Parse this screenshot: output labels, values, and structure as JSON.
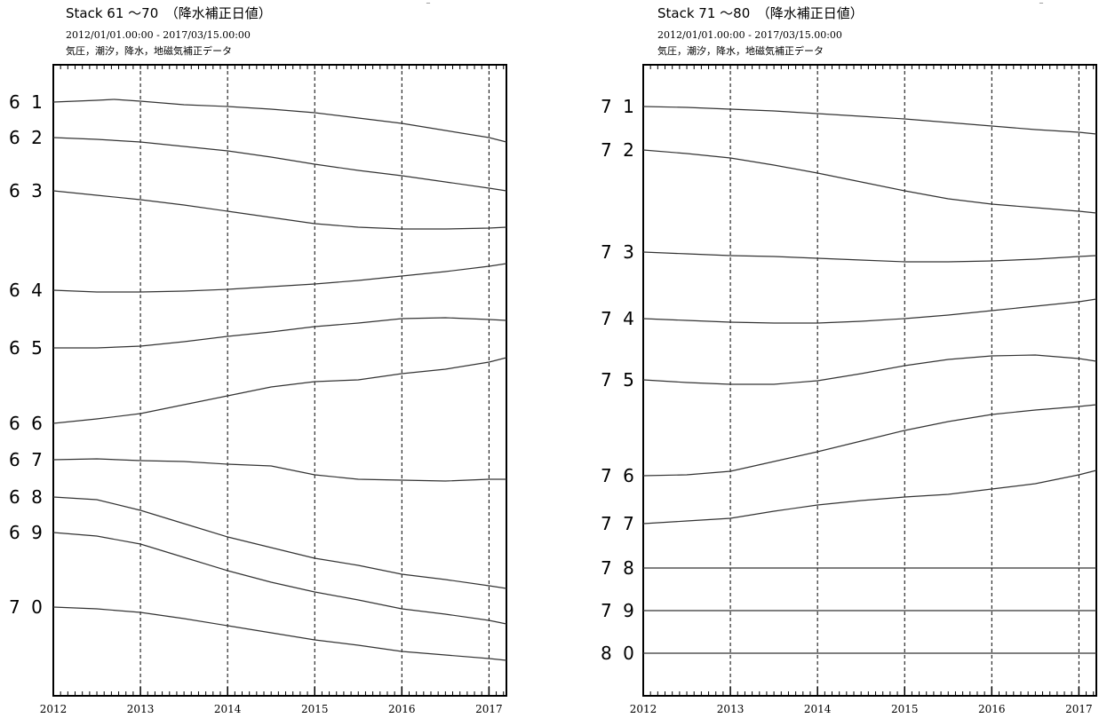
{
  "chart_data": [
    {
      "type": "line",
      "title": "Stack 61 ～70　（降水補正日値）",
      "date_range": "2012/01/01.00:00 - 2017/03/15.00:00",
      "corrections": "気圧，潮汐，降水，地磁気補正データ",
      "x_ticks": [
        "2012",
        "2013",
        "2014",
        "2015",
        "2016",
        "2017"
      ],
      "xlim": [
        2012.0,
        2017.2
      ],
      "series": [
        {
          "name": "6 1",
          "x": [
            2012.0,
            2012.5,
            2012.7,
            2013.0,
            2013.5,
            2014.0,
            2014.5,
            2015.0,
            2015.5,
            2016.0,
            2016.5,
            2017.0,
            2017.2
          ],
          "y": [
            115,
            113,
            112,
            114,
            118,
            120,
            123,
            127,
            133,
            139,
            147,
            155,
            160
          ]
        },
        {
          "name": "6 2",
          "x": [
            2012.0,
            2012.5,
            2013.0,
            2013.5,
            2014.0,
            2014.5,
            2015.0,
            2015.5,
            2016.0,
            2016.5,
            2017.0,
            2017.2
          ],
          "y": [
            155,
            157,
            160,
            165,
            170,
            177,
            185,
            192,
            198,
            205,
            212,
            215
          ]
        },
        {
          "name": "6 3",
          "x": [
            2012.0,
            2012.5,
            2013.0,
            2013.5,
            2014.0,
            2014.5,
            2015.0,
            2015.5,
            2016.0,
            2016.5,
            2017.0,
            2017.2
          ],
          "y": [
            215,
            220,
            225,
            231,
            238,
            245,
            252,
            256,
            258,
            258,
            257,
            256
          ]
        },
        {
          "name": "6 4",
          "x": [
            2012.0,
            2012.5,
            2013.0,
            2013.5,
            2014.0,
            2014.5,
            2015.0,
            2015.5,
            2016.0,
            2016.5,
            2017.0,
            2017.2
          ],
          "y": [
            327,
            329,
            329,
            328,
            326,
            323,
            320,
            316,
            311,
            306,
            300,
            297
          ]
        },
        {
          "name": "6 5",
          "x": [
            2012.0,
            2012.5,
            2013.0,
            2013.5,
            2014.0,
            2014.5,
            2015.0,
            2015.5,
            2016.0,
            2016.5,
            2017.0,
            2017.2
          ],
          "y": [
            392,
            392,
            390,
            385,
            379,
            374,
            368,
            364,
            359,
            358,
            360,
            361
          ]
        },
        {
          "name": "6 6",
          "x": [
            2012.0,
            2012.5,
            2013.0,
            2013.5,
            2014.0,
            2014.5,
            2015.0,
            2015.5,
            2016.0,
            2016.5,
            2017.0,
            2017.2
          ],
          "y": [
            477,
            472,
            466,
            456,
            446,
            436,
            430,
            428,
            421,
            416,
            408,
            403
          ]
        },
        {
          "name": "6 7",
          "x": [
            2012.0,
            2012.5,
            2013.0,
            2013.5,
            2014.0,
            2014.5,
            2015.0,
            2015.5,
            2016.0,
            2016.5,
            2017.0,
            2017.2
          ],
          "y": [
            518,
            517,
            519,
            520,
            523,
            525,
            535,
            540,
            541,
            542,
            540,
            540
          ]
        },
        {
          "name": "6 8",
          "x": [
            2012.0,
            2012.5,
            2013.0,
            2013.5,
            2014.0,
            2014.5,
            2015.0,
            2015.5,
            2016.0,
            2016.5,
            2017.0,
            2017.2
          ],
          "y": [
            560,
            563,
            575,
            590,
            605,
            617,
            629,
            637,
            647,
            653,
            660,
            663
          ]
        },
        {
          "name": "6 9",
          "x": [
            2012.0,
            2012.5,
            2013.0,
            2013.5,
            2014.0,
            2014.5,
            2015.0,
            2015.5,
            2016.0,
            2016.5,
            2017.0,
            2017.2
          ],
          "y": [
            600,
            604,
            613,
            628,
            643,
            656,
            667,
            676,
            686,
            692,
            699,
            703
          ]
        },
        {
          "name": "7 0",
          "x": [
            2012.0,
            2012.5,
            2013.0,
            2013.5,
            2014.0,
            2014.5,
            2015.0,
            2015.5,
            2016.0,
            2016.5,
            2017.0,
            2017.2
          ],
          "y": [
            684,
            686,
            690,
            697,
            705,
            713,
            721,
            727,
            734,
            738,
            742,
            744
          ]
        }
      ]
    },
    {
      "type": "line",
      "title": "Stack 71 ～80　（降水補正日値）",
      "date_range": "2012/01/01.00:00 - 2017/03/15.00:00",
      "corrections": "気圧，潮汐，降水，地磁気補正データ",
      "x_ticks": [
        "2012",
        "2013",
        "2014",
        "2015",
        "2016",
        "2017"
      ],
      "xlim": [
        2012.0,
        2017.2
      ],
      "series": [
        {
          "name": "7 1",
          "x": [
            2012.0,
            2012.5,
            2013.0,
            2013.5,
            2014.0,
            2014.5,
            2015.0,
            2015.5,
            2016.0,
            2016.5,
            2017.0,
            2017.2
          ],
          "y": [
            120,
            121,
            123,
            125,
            128,
            131,
            134,
            138,
            142,
            146,
            149,
            151
          ]
        },
        {
          "name": "7 2",
          "x": [
            2012.0,
            2012.5,
            2013.0,
            2013.5,
            2014.0,
            2014.5,
            2015.0,
            2015.5,
            2016.0,
            2016.5,
            2017.0,
            2017.2
          ],
          "y": [
            169,
            173,
            178,
            186,
            195,
            205,
            215,
            224,
            230,
            234,
            238,
            240
          ]
        },
        {
          "name": "7 3",
          "x": [
            2012.0,
            2012.5,
            2013.0,
            2013.5,
            2014.0,
            2014.5,
            2015.0,
            2015.5,
            2016.0,
            2016.5,
            2017.0,
            2017.2
          ],
          "y": [
            284,
            286,
            288,
            289,
            291,
            293,
            295,
            295,
            294,
            292,
            289,
            288
          ]
        },
        {
          "name": "7 4",
          "x": [
            2012.0,
            2012.5,
            2013.0,
            2013.5,
            2014.0,
            2014.5,
            2015.0,
            2015.5,
            2016.0,
            2016.5,
            2017.0,
            2017.2
          ],
          "y": [
            359,
            361,
            363,
            364,
            364,
            362,
            359,
            355,
            350,
            345,
            340,
            337
          ]
        },
        {
          "name": "7 5",
          "x": [
            2012.0,
            2012.5,
            2013.0,
            2013.5,
            2014.0,
            2014.5,
            2015.0,
            2015.5,
            2016.0,
            2016.5,
            2017.0,
            2017.2
          ],
          "y": [
            428,
            431,
            433,
            433,
            429,
            421,
            412,
            405,
            401,
            400,
            404,
            407
          ]
        },
        {
          "name": "7 6",
          "x": [
            2012.0,
            2012.5,
            2013.0,
            2013.5,
            2014.0,
            2014.5,
            2015.0,
            2015.5,
            2016.0,
            2016.5,
            2017.0,
            2017.2
          ],
          "y": [
            536,
            535,
            531,
            520,
            509,
            497,
            485,
            475,
            467,
            462,
            458,
            456
          ]
        },
        {
          "name": "7 7",
          "x": [
            2012.0,
            2012.5,
            2013.0,
            2013.5,
            2014.0,
            2014.5,
            2015.0,
            2015.5,
            2016.0,
            2016.5,
            2017.0,
            2017.2
          ],
          "y": [
            590,
            587,
            584,
            576,
            569,
            564,
            560,
            557,
            551,
            545,
            535,
            530
          ]
        },
        {
          "name": "7 8",
          "x": [
            2012.0,
            2017.2
          ],
          "y": [
            640,
            640
          ]
        },
        {
          "name": "7 9",
          "x": [
            2012.0,
            2017.2
          ],
          "y": [
            688,
            688
          ]
        },
        {
          "name": "8 0",
          "x": [
            2012.0,
            2017.2
          ],
          "y": [
            736,
            736
          ]
        }
      ]
    }
  ]
}
